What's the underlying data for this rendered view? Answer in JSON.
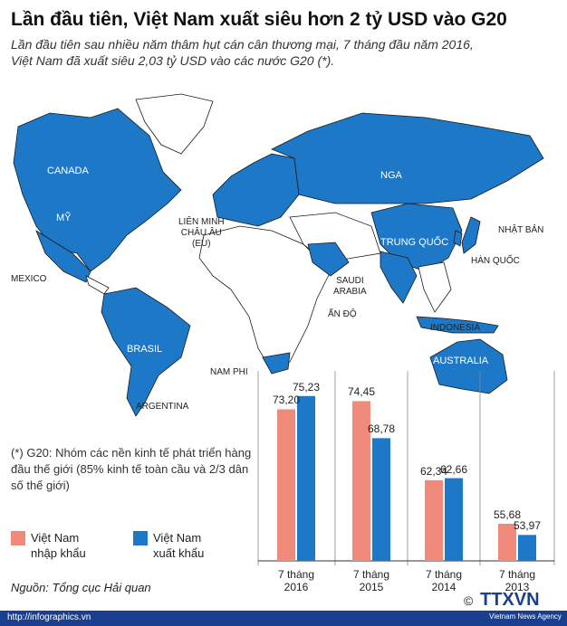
{
  "title": "Lần đầu tiên, Việt Nam xuất siêu hơn 2 tỷ USD vào G20",
  "subtitle": "Lần đầu tiên sau nhiều năm thâm hụt cán cân thương mại, 7 tháng đầu năm 2016,\nViệt Nam đã xuất siêu 2,03 tỷ USD vào các nước G20 (*).",
  "map": {
    "labels": [
      "CANADA",
      "MỸ",
      "MEXICO",
      "BRASIL",
      "ARGENTINA",
      "LIÊN MINH\nCHÂU ÂU\n(EU)",
      "NGA",
      "TRUNG QUỐC",
      "NHẬT BẢN",
      "HÀN QUỐC",
      "SAUDI\nARABIA",
      "ẤN ĐỘ",
      "INDONESIA",
      "AUSTRALIA",
      "NAM PHI"
    ]
  },
  "note": "(*) G20: Nhóm các nền kinh tế phát triển hàng đầu thế giới (85% kinh tế toàn cầu và 2/3 dân số thế giới)",
  "chart_data": {
    "type": "bar",
    "categories": [
      "7 tháng\n2016",
      "7 tháng\n2015",
      "7 tháng\n2014",
      "7 tháng\n2013"
    ],
    "ylim": [
      50,
      77
    ],
    "series": [
      {
        "name": "Việt Nam\nnhập khẩu",
        "color": "#f08a7a",
        "values": [
          73.2,
          74.45,
          62.34,
          55.68
        ],
        "value_labels": [
          "73,20",
          "74,45",
          "62,34",
          "55,68"
        ]
      },
      {
        "name": "Việt Nam\nxuất khẩu",
        "color": "#1e78c8",
        "values": [
          75.23,
          68.78,
          62.66,
          53.97
        ],
        "value_labels": [
          "75,23",
          "68,78",
          "62,66",
          "53,97"
        ]
      }
    ]
  },
  "source": "Nguồn: Tổng cục Hải quan",
  "footer": {
    "url": "http://infographics.vn",
    "copyright": "©",
    "logo": "TTXVN",
    "agency": "Vietnam News Agency"
  }
}
